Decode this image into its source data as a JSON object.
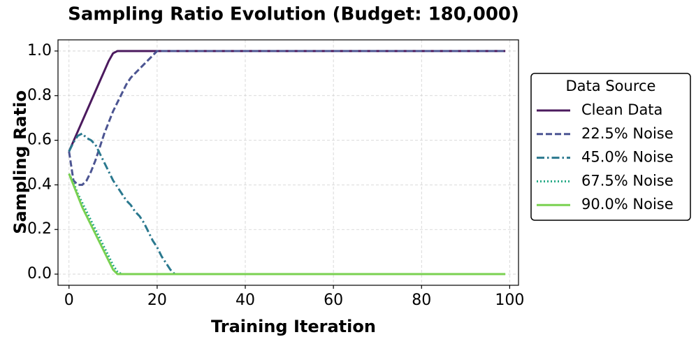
{
  "chart_data": {
    "type": "line",
    "title": "Sampling Ratio Evolution (Budget: 180,000)",
    "x_label": "Training Iteration",
    "y_label": "Sampling Ratio",
    "legend_title": "Data Source",
    "legend_position": "right",
    "grid": true,
    "xlim": [
      -2.5,
      102
    ],
    "ylim": [
      -0.05,
      1.05
    ],
    "xticks": [
      0,
      20,
      40,
      60,
      80,
      100
    ],
    "yticks": [
      {
        "value": 0,
        "label": "0.0"
      },
      0.2,
      0.4,
      0.6,
      0.8,
      {
        "value": 1,
        "label": "1.0"
      }
    ],
    "x": [
      0,
      1,
      2,
      3,
      4,
      5,
      6,
      7,
      8,
      9,
      10,
      11,
      12,
      13,
      14,
      15,
      16,
      17,
      18,
      19,
      20,
      21,
      22,
      23,
      24,
      25,
      26,
      99
    ],
    "series": [
      {
        "name": "Clean Data",
        "color": "#4b1a5e",
        "dash": "solid",
        "values": [
          0.55,
          0.595,
          0.64,
          0.685,
          0.73,
          0.775,
          0.82,
          0.865,
          0.91,
          0.955,
          0.99,
          1,
          1,
          1,
          1,
          1,
          1,
          1,
          1,
          1,
          1,
          1,
          1,
          1,
          1,
          1,
          1,
          1
        ]
      },
      {
        "name": "22.5% Noise",
        "color": "#4c5592",
        "dash": "dashed",
        "values": [
          0.55,
          0.42,
          0.4,
          0.4,
          0.42,
          0.46,
          0.51,
          0.57,
          0.63,
          0.68,
          0.73,
          0.77,
          0.81,
          0.85,
          0.88,
          0.9,
          0.92,
          0.94,
          0.96,
          0.98,
          1,
          1,
          1,
          1,
          1,
          1,
          1,
          1
        ]
      },
      {
        "name": "45.0% Noise",
        "color": "#2a788e",
        "dash": "dashdot",
        "values": [
          0.55,
          0.59,
          0.62,
          0.63,
          0.61,
          0.6,
          0.58,
          0.54,
          0.5,
          0.46,
          0.42,
          0.39,
          0.36,
          0.33,
          0.31,
          0.28,
          0.26,
          0.23,
          0.19,
          0.15,
          0.12,
          0.08,
          0.05,
          0.02,
          0,
          0,
          0,
          0
        ]
      },
      {
        "name": "67.5% Noise",
        "color": "#22a884",
        "dash": "dotted",
        "values": [
          0.45,
          0.41,
          0.36,
          0.32,
          0.28,
          0.24,
          0.2,
          0.16,
          0.12,
          0.08,
          0.04,
          0.01,
          0,
          0,
          0,
          0,
          0,
          0,
          0,
          0,
          0,
          0,
          0,
          0,
          0,
          0,
          0,
          0
        ]
      },
      {
        "name": "90.0% Noise",
        "color": "#7ad151",
        "dash": "solid",
        "values": [
          0.45,
          0.4,
          0.35,
          0.3,
          0.26,
          0.22,
          0.18,
          0.14,
          0.1,
          0.06,
          0.02,
          0,
          0,
          0,
          0,
          0,
          0,
          0,
          0,
          0,
          0,
          0,
          0,
          0,
          0,
          0,
          0,
          0
        ]
      }
    ]
  }
}
